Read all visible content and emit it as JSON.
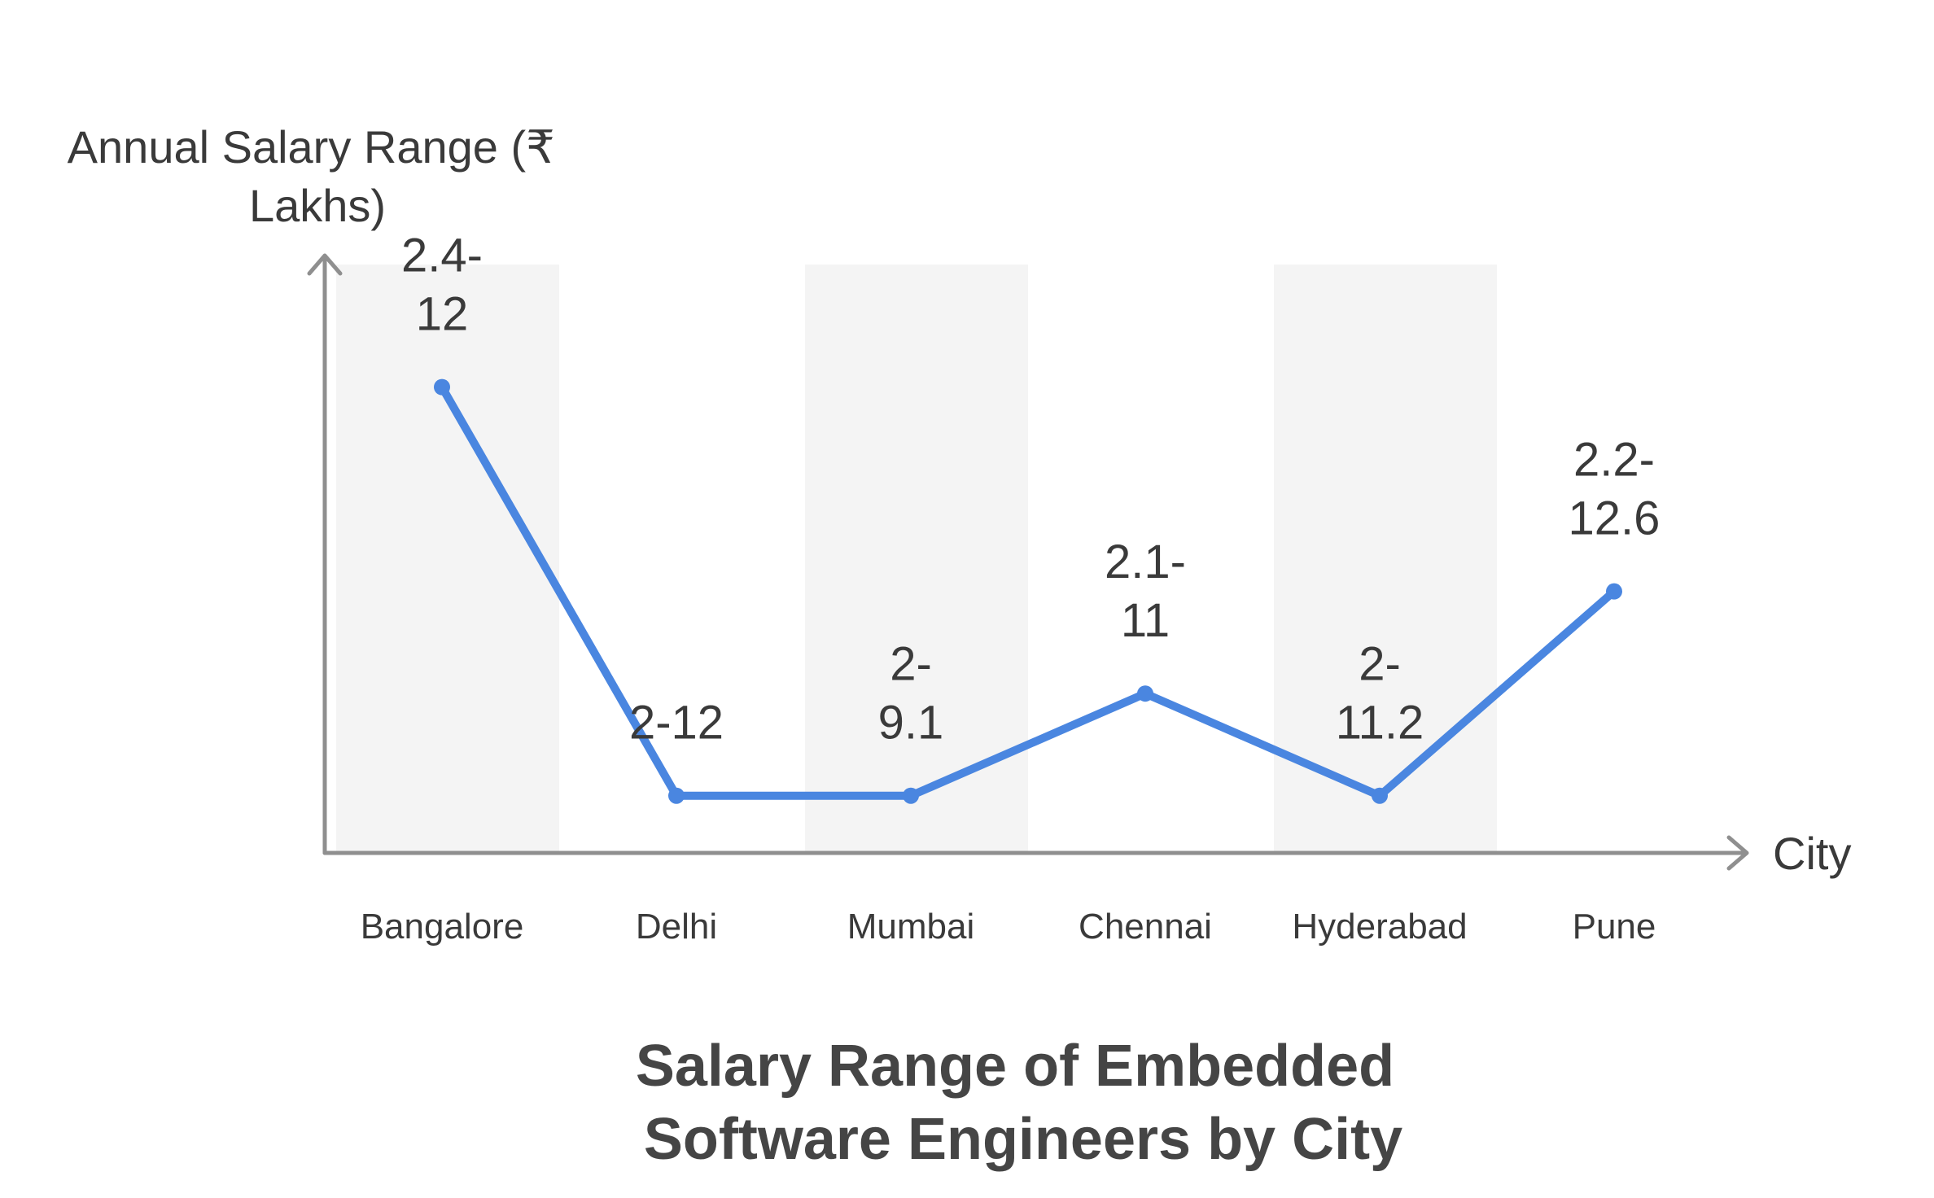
{
  "chart_data": {
    "type": "line",
    "title": [
      "Salary Range of Embedded",
      "Software Engineers by City"
    ],
    "xlabel": "City",
    "ylabel": [
      "Annual Salary Range (₹",
      "Lakhs)"
    ],
    "categories": [
      "Bangalore",
      "Delhi",
      "Mumbai",
      "Chennai",
      "Hyderabad",
      "Pune"
    ],
    "series": [
      {
        "values": [
          12,
          2,
          2,
          4.5,
          2,
          7
        ],
        "labels": [
          [
            "2.4-",
            "12"
          ],
          [
            "2-12"
          ],
          [
            "2-",
            "9.1"
          ],
          [
            "2.1-",
            "11"
          ],
          [
            "2-",
            "11.2"
          ],
          [
            "2.2-",
            "12.6"
          ]
        ]
      }
    ],
    "ylim": [
      0.6,
      15
    ],
    "grid": false,
    "alternating_bands": true,
    "colors": {
      "line": "#4a86e0",
      "band": "#f4f4f4",
      "axis": "#8f8f8f",
      "text": "#3a3a3a",
      "title": "#454545"
    }
  }
}
